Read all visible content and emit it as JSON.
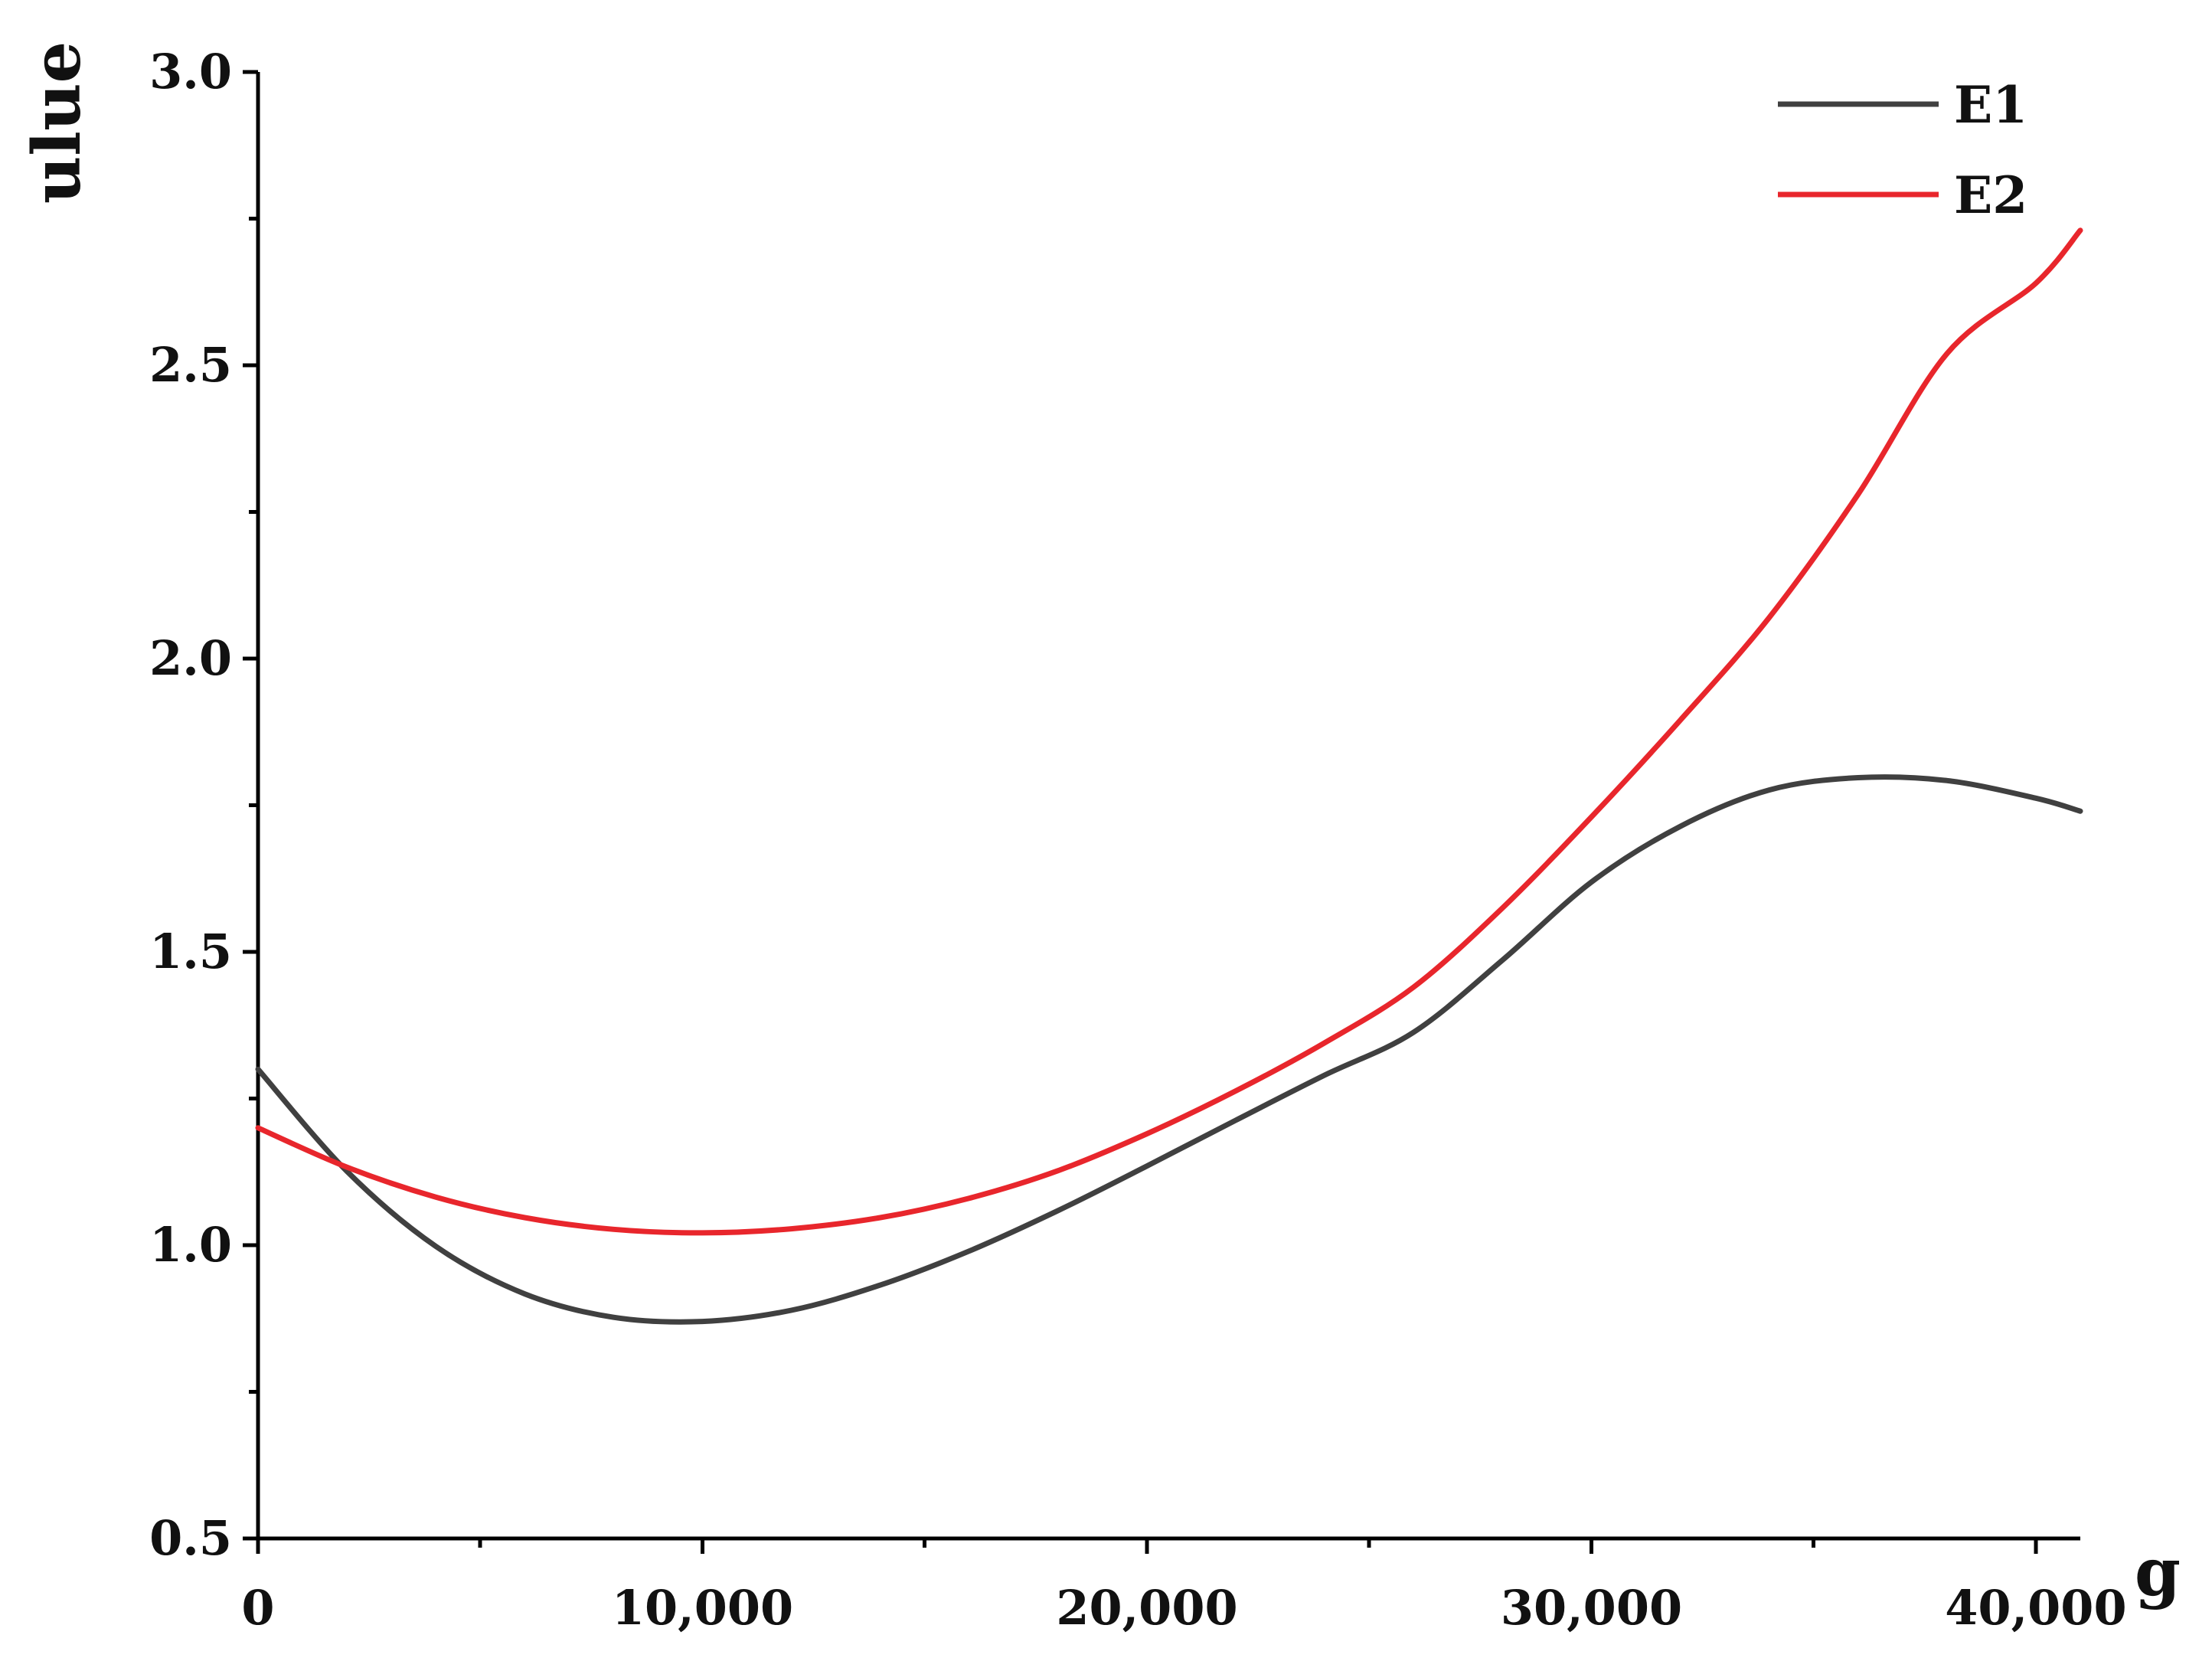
{
  "chart_data": {
    "type": "line",
    "title": "",
    "xlabel": "g",
    "ylabel": "ulue",
    "xlim": [
      0,
      41000
    ],
    "ylim": [
      0.5,
      3.0
    ],
    "x_ticks": [
      {
        "value": 0,
        "label": "0"
      },
      {
        "value": 10000,
        "label": "10,000"
      },
      {
        "value": 20000,
        "label": "20,000"
      },
      {
        "value": 30000,
        "label": "30,000"
      },
      {
        "value": 40000,
        "label": "40,000"
      }
    ],
    "y_ticks": [
      {
        "value": 0.5,
        "label": "0.5"
      },
      {
        "value": 1.0,
        "label": "1.0"
      },
      {
        "value": 1.5,
        "label": "1.5"
      },
      {
        "value": 2.0,
        "label": "2.0"
      },
      {
        "value": 2.5,
        "label": "2.5"
      },
      {
        "value": 3.0,
        "label": "3.0"
      }
    ],
    "grid": false,
    "legend_position": "top-right",
    "x": [
      0,
      2000,
      4000,
      6000,
      8000,
      10000,
      12000,
      14000,
      16000,
      18000,
      20000,
      22000,
      24000,
      26000,
      28000,
      30000,
      32000,
      34000,
      36000,
      38000,
      40000,
      41000
    ],
    "series": [
      {
        "name": "E1",
        "color": "#404040",
        "values": [
          1.3,
          1.126,
          0.998,
          0.917,
          0.877,
          0.87,
          0.889,
          0.932,
          0.99,
          1.059,
          1.135,
          1.213,
          1.29,
          1.363,
          1.486,
          1.619,
          1.714,
          1.776,
          1.797,
          1.792,
          1.762,
          1.74
        ]
      },
      {
        "name": "E2",
        "color": "#e8262c",
        "values": [
          1.2,
          1.133,
          1.082,
          1.047,
          1.027,
          1.021,
          1.028,
          1.047,
          1.08,
          1.127,
          1.19,
          1.263,
          1.345,
          1.44,
          1.575,
          1.73,
          1.895,
          2.07,
          2.28,
          2.52,
          2.64,
          2.73
        ]
      }
    ]
  }
}
